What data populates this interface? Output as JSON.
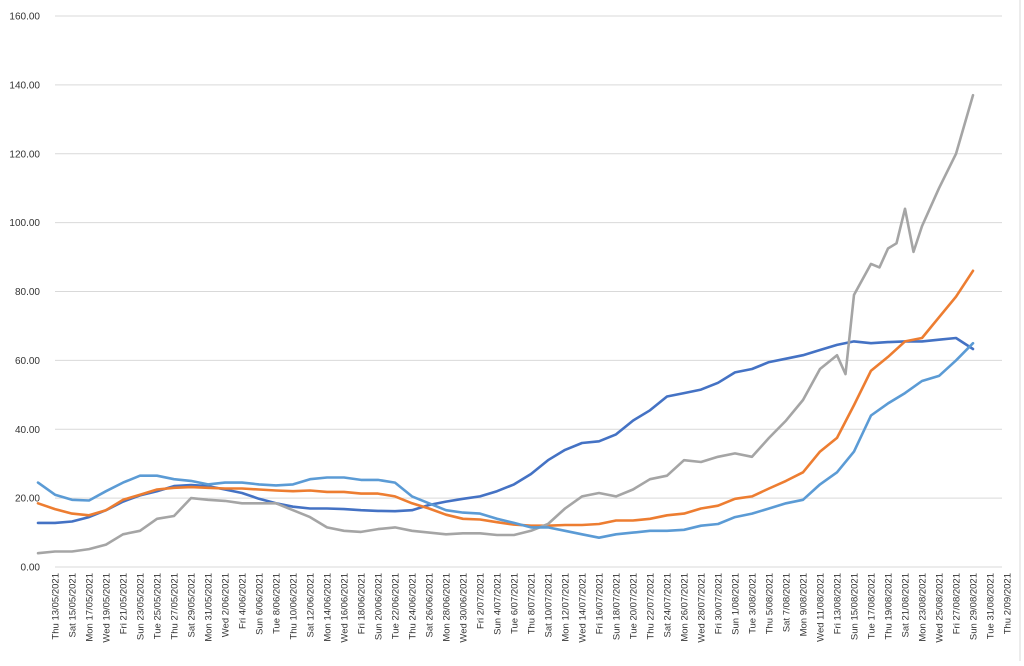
{
  "chart_data": {
    "type": "line",
    "title": "",
    "xlabel": "",
    "ylabel": "",
    "ylim": [
      0,
      160
    ],
    "y_ticks": [
      "0.00",
      "20.00",
      "40.00",
      "60.00",
      "80.00",
      "100.00",
      "120.00",
      "140.00",
      "160.00"
    ],
    "y_tick_values": [
      0,
      20,
      40,
      60,
      80,
      100,
      120,
      140,
      160
    ],
    "grid": true,
    "legend": "none",
    "start_date": "2021-05-13",
    "end_date": "2021-09-02",
    "x_tick_labels": [
      "Thu 13/05/2021",
      "Sat 15/05/2021",
      "Mon 17/05/2021",
      "Wed 19/05/2021",
      "Fri 21/05/2021",
      "Sun 23/05/2021",
      "Tue 25/05/2021",
      "Thu 27/05/2021",
      "Sat 29/05/2021",
      "Mon 31/05/2021",
      "Wed 2/06/2021",
      "Fri 4/06/2021",
      "Sun 6/06/2021",
      "Tue 8/06/2021",
      "Thu 10/06/2021",
      "Sat 12/06/2021",
      "Mon 14/06/2021",
      "Wed 16/06/2021",
      "Fri 18/06/2021",
      "Sun 20/06/2021",
      "Tue 22/06/2021",
      "Thu 24/06/2021",
      "Sat 26/06/2021",
      "Mon 28/06/2021",
      "Wed 30/06/2021",
      "Fri 2/07/2021",
      "Sun 4/07/2021",
      "Tue 6/07/2021",
      "Thu 8/07/2021",
      "Sat 10/07/2021",
      "Mon 12/07/2021",
      "Wed 14/07/2021",
      "Fri 16/07/2021",
      "Sun 18/07/2021",
      "Tue 20/07/2021",
      "Thu 22/07/2021",
      "Sat 24/07/2021",
      "Mon 26/07/2021",
      "Wed 28/07/2021",
      "Fri 30/07/2021",
      "Sun 1/08/2021",
      "Tue 3/08/2021",
      "Thu 5/08/2021",
      "Sat 7/08/2021",
      "Mon 9/08/2021",
      "Wed 11/08/2021",
      "Fri 13/08/2021",
      "Sun 15/08/2021",
      "Tue 17/08/2021",
      "Thu 19/08/2021",
      "Sat 21/08/2021",
      "Mon 23/08/2021",
      "Wed 25/08/2021",
      "Fri 27/08/2021",
      "Sun 29/08/2021",
      "Tue 31/08/2021",
      "Thu 2/09/2021"
    ],
    "series": [
      {
        "color": "#4472c4",
        "values": [
          [
            -2,
            12.8
          ],
          [
            0,
            12.8
          ],
          [
            2,
            13.2
          ],
          [
            4,
            14.5
          ],
          [
            6,
            16.5
          ],
          [
            8,
            19.0
          ],
          [
            10,
            20.8
          ],
          [
            12,
            22.0
          ],
          [
            14,
            23.5
          ],
          [
            16,
            23.8
          ],
          [
            18,
            23.5
          ],
          [
            20,
            22.5
          ],
          [
            22,
            21.5
          ],
          [
            24,
            19.8
          ],
          [
            26,
            18.5
          ],
          [
            28,
            17.5
          ],
          [
            30,
            17.0
          ],
          [
            32,
            17.0
          ],
          [
            34,
            16.8
          ],
          [
            36,
            16.5
          ],
          [
            38,
            16.3
          ],
          [
            40,
            16.2
          ],
          [
            42,
            16.5
          ],
          [
            44,
            18.0
          ],
          [
            46,
            19.0
          ],
          [
            48,
            19.8
          ],
          [
            50,
            20.5
          ],
          [
            52,
            22.0
          ],
          [
            54,
            24.0
          ],
          [
            56,
            27.0
          ],
          [
            58,
            31.0
          ],
          [
            60,
            34.0
          ],
          [
            62,
            36.0
          ],
          [
            64,
            36.5
          ],
          [
            66,
            38.5
          ],
          [
            68,
            42.5
          ],
          [
            70,
            45.5
          ],
          [
            72,
            49.5
          ],
          [
            74,
            50.5
          ],
          [
            76,
            51.5
          ],
          [
            78,
            53.5
          ],
          [
            80,
            56.5
          ],
          [
            82,
            57.5
          ],
          [
            84,
            59.5
          ],
          [
            86,
            60.5
          ],
          [
            88,
            61.5
          ],
          [
            90,
            63.0
          ],
          [
            92,
            64.5
          ],
          [
            94,
            65.5
          ],
          [
            96,
            65.0
          ],
          [
            98,
            65.3
          ],
          [
            100,
            65.5
          ],
          [
            102,
            65.5
          ],
          [
            104,
            66.0
          ],
          [
            106,
            66.5
          ],
          [
            108,
            63.3
          ]
        ]
      },
      {
        "color": "#ed7d31",
        "values": [
          [
            -2,
            18.5
          ],
          [
            0,
            16.8
          ],
          [
            2,
            15.5
          ],
          [
            4,
            15.0
          ],
          [
            6,
            16.5
          ],
          [
            8,
            19.5
          ],
          [
            10,
            21.0
          ],
          [
            12,
            22.5
          ],
          [
            14,
            23.0
          ],
          [
            16,
            23.2
          ],
          [
            18,
            23.0
          ],
          [
            20,
            22.8
          ],
          [
            22,
            22.8
          ],
          [
            24,
            22.5
          ],
          [
            26,
            22.2
          ],
          [
            28,
            22.0
          ],
          [
            30,
            22.2
          ],
          [
            32,
            21.8
          ],
          [
            34,
            21.8
          ],
          [
            36,
            21.3
          ],
          [
            38,
            21.3
          ],
          [
            40,
            20.5
          ],
          [
            42,
            18.5
          ],
          [
            44,
            17.0
          ],
          [
            46,
            15.2
          ],
          [
            48,
            14.0
          ],
          [
            50,
            13.8
          ],
          [
            52,
            13.0
          ],
          [
            54,
            12.3
          ],
          [
            56,
            12.0
          ],
          [
            58,
            12.0
          ],
          [
            60,
            12.2
          ],
          [
            62,
            12.2
          ],
          [
            64,
            12.5
          ],
          [
            66,
            13.5
          ],
          [
            68,
            13.5
          ],
          [
            70,
            14.0
          ],
          [
            72,
            15.0
          ],
          [
            74,
            15.5
          ],
          [
            76,
            17.0
          ],
          [
            78,
            17.8
          ],
          [
            80,
            19.8
          ],
          [
            82,
            20.5
          ],
          [
            84,
            22.8
          ],
          [
            86,
            25.0
          ],
          [
            88,
            27.5
          ],
          [
            90,
            33.5
          ],
          [
            92,
            37.5
          ],
          [
            94,
            47.0
          ],
          [
            96,
            57.0
          ],
          [
            98,
            61.0
          ],
          [
            100,
            65.5
          ],
          [
            102,
            66.5
          ],
          [
            104,
            72.5
          ],
          [
            106,
            78.5
          ],
          [
            108,
            86.0
          ]
        ]
      },
      {
        "color": "#a5a5a5",
        "values": [
          [
            -2,
            4.0
          ],
          [
            0,
            4.5
          ],
          [
            2,
            4.5
          ],
          [
            4,
            5.2
          ],
          [
            6,
            6.5
          ],
          [
            8,
            9.5
          ],
          [
            10,
            10.5
          ],
          [
            12,
            14.0
          ],
          [
            14,
            14.8
          ],
          [
            16,
            20.0
          ],
          [
            18,
            19.5
          ],
          [
            20,
            19.2
          ],
          [
            22,
            18.5
          ],
          [
            24,
            18.5
          ],
          [
            26,
            18.5
          ],
          [
            28,
            16.5
          ],
          [
            30,
            14.5
          ],
          [
            32,
            11.5
          ],
          [
            34,
            10.5
          ],
          [
            36,
            10.2
          ],
          [
            38,
            11.0
          ],
          [
            40,
            11.5
          ],
          [
            42,
            10.5
          ],
          [
            44,
            10.0
          ],
          [
            46,
            9.5
          ],
          [
            48,
            9.8
          ],
          [
            50,
            9.8
          ],
          [
            52,
            9.3
          ],
          [
            54,
            9.3
          ],
          [
            56,
            10.5
          ],
          [
            58,
            12.5
          ],
          [
            60,
            17.0
          ],
          [
            62,
            20.5
          ],
          [
            64,
            21.5
          ],
          [
            66,
            20.5
          ],
          [
            68,
            22.5
          ],
          [
            70,
            25.5
          ],
          [
            72,
            26.5
          ],
          [
            74,
            31.0
          ],
          [
            76,
            30.5
          ],
          [
            78,
            32.0
          ],
          [
            80,
            33.0
          ],
          [
            82,
            32.0
          ],
          [
            84,
            37.5
          ],
          [
            86,
            42.5
          ],
          [
            88,
            48.5
          ],
          [
            90,
            57.5
          ],
          [
            92,
            61.5
          ],
          [
            93,
            56.0
          ],
          [
            94,
            79.0
          ],
          [
            96,
            88.0
          ],
          [
            97,
            87.0
          ],
          [
            98,
            92.5
          ],
          [
            99,
            94.0
          ],
          [
            100,
            104.0
          ],
          [
            101,
            91.5
          ],
          [
            102,
            99.0
          ],
          [
            104,
            110.0
          ],
          [
            106,
            120.0
          ],
          [
            108,
            137.0
          ]
        ]
      },
      {
        "color": "#5b9bd5",
        "values": [
          [
            -2,
            24.5
          ],
          [
            0,
            21.0
          ],
          [
            2,
            19.5
          ],
          [
            4,
            19.3
          ],
          [
            6,
            22.0
          ],
          [
            8,
            24.5
          ],
          [
            10,
            26.5
          ],
          [
            12,
            26.5
          ],
          [
            14,
            25.5
          ],
          [
            16,
            25.0
          ],
          [
            18,
            24.0
          ],
          [
            20,
            24.5
          ],
          [
            22,
            24.5
          ],
          [
            24,
            24.0
          ],
          [
            26,
            23.7
          ],
          [
            28,
            24.0
          ],
          [
            30,
            25.5
          ],
          [
            32,
            26.0
          ],
          [
            34,
            26.0
          ],
          [
            36,
            25.3
          ],
          [
            38,
            25.3
          ],
          [
            40,
            24.5
          ],
          [
            42,
            20.5
          ],
          [
            44,
            18.5
          ],
          [
            46,
            16.5
          ],
          [
            48,
            15.8
          ],
          [
            50,
            15.5
          ],
          [
            52,
            14.0
          ],
          [
            54,
            12.8
          ],
          [
            56,
            11.5
          ],
          [
            58,
            11.5
          ],
          [
            60,
            10.5
          ],
          [
            62,
            9.5
          ],
          [
            64,
            8.5
          ],
          [
            66,
            9.5
          ],
          [
            68,
            10.0
          ],
          [
            70,
            10.5
          ],
          [
            72,
            10.5
          ],
          [
            74,
            10.8
          ],
          [
            76,
            12.0
          ],
          [
            78,
            12.5
          ],
          [
            80,
            14.5
          ],
          [
            82,
            15.5
          ],
          [
            84,
            17.0
          ],
          [
            86,
            18.5
          ],
          [
            88,
            19.5
          ],
          [
            90,
            24.0
          ],
          [
            92,
            27.5
          ],
          [
            94,
            33.5
          ],
          [
            96,
            44.0
          ],
          [
            98,
            47.5
          ],
          [
            100,
            50.5
          ],
          [
            102,
            54.0
          ],
          [
            104,
            55.5
          ],
          [
            106,
            60.0
          ],
          [
            108,
            65.0
          ]
        ]
      }
    ]
  }
}
